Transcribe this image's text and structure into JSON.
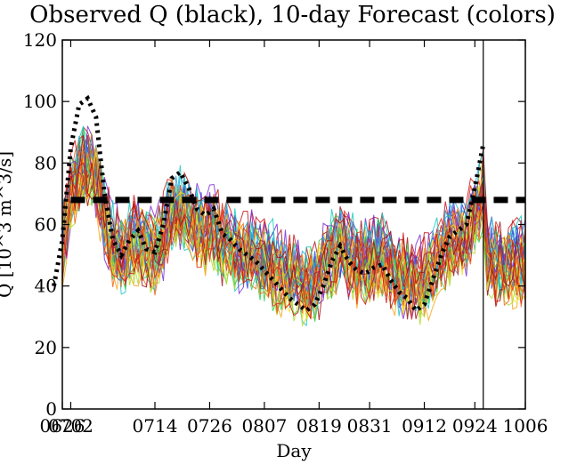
{
  "chart_data": {
    "type": "line",
    "title": "Observed Q (black), 10-day Forecast (colors)",
    "xlabel": "Day",
    "ylabel": "Q [10^3 m^3/s]",
    "ylim": [
      0,
      120
    ],
    "xlim": [
      0,
      100
    ],
    "x_ticks": [
      {
        "label": "0626",
        "x": 2
      },
      {
        "label": "0702",
        "x": 4
      },
      {
        "label": "0714",
        "x": 24
      },
      {
        "label": "0726",
        "x": 37
      },
      {
        "label": "0807",
        "x": 50
      },
      {
        "label": "0819",
        "x": 63
      },
      {
        "label": "0831",
        "x": 75
      },
      {
        "label": "0912",
        "x": 88
      },
      {
        "label": "0924",
        "x": 100
      },
      {
        "label": "1006",
        "x": 112
      }
    ],
    "y_ticks": [
      0,
      20,
      40,
      60,
      80,
      100,
      120
    ],
    "threshold": {
      "y": 68,
      "style": "dashed-thick"
    },
    "forecast_date_line_x": 102,
    "observed": {
      "color": "#000000",
      "x": [
        0,
        2,
        4,
        6,
        8,
        10,
        12,
        14,
        16,
        18,
        20,
        22,
        24,
        26,
        28,
        30,
        32,
        34,
        36,
        38,
        40,
        42,
        44,
        46,
        48,
        50,
        52,
        54,
        56,
        58,
        60,
        62,
        64,
        66,
        68,
        70,
        72,
        74,
        76,
        78,
        80,
        82,
        84,
        86,
        88,
        90,
        92,
        94,
        96,
        98,
        100,
        102
      ],
      "y": [
        40,
        55,
        85,
        99,
        101,
        95,
        70,
        55,
        50,
        55,
        58,
        52,
        51,
        60,
        75,
        77,
        72,
        65,
        63,
        65,
        57,
        55,
        52,
        50,
        48,
        45,
        42,
        39,
        36,
        34,
        32,
        34,
        40,
        48,
        53,
        48,
        45,
        44,
        46,
        47,
        42,
        38,
        36,
        32,
        34,
        42,
        50,
        56,
        58,
        60,
        72,
        86
      ]
    },
    "series_colors": [
      "#7b2fd6",
      "#3a46d9",
      "#1ea1e8",
      "#19c9c2",
      "#2fcf4a",
      "#b3d92b",
      "#f2e01f",
      "#f7a51c",
      "#f0651a",
      "#e2341a",
      "#c8161a",
      "#a3141a"
    ]
  }
}
